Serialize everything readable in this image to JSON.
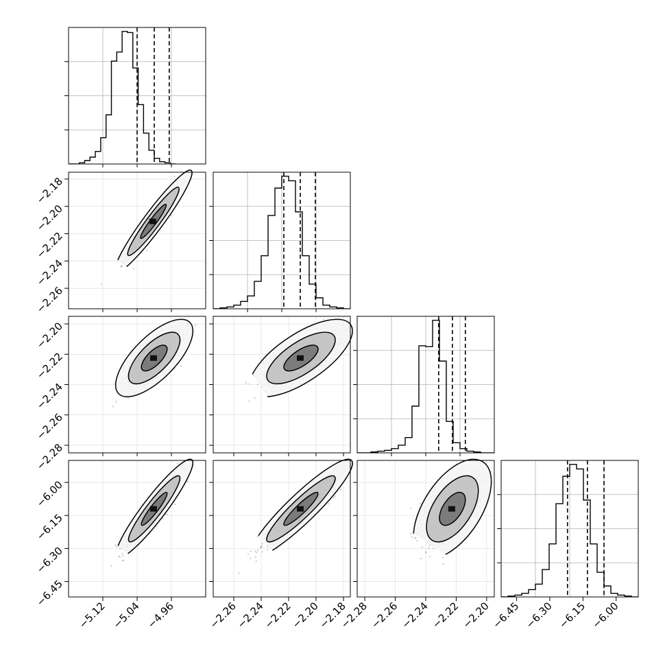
{
  "chart_data": {
    "type": "corner",
    "panels": [
      {
        "type": "histogram",
        "row": 0,
        "col": 0,
        "param_index": 0,
        "xlim": [
          -5.2,
          -4.88
        ],
        "bin_start": -5.2,
        "bin_width": 0.0125,
        "counts": [
          0,
          0,
          1,
          3,
          6,
          11,
          23,
          43,
          90,
          98,
          116,
          115,
          84,
          52,
          27,
          12,
          5,
          2,
          1,
          0
        ],
        "quantiles": [
          -5.04,
          -5.0,
          -4.965
        ],
        "show_xticks": false
      },
      {
        "type": "scatter",
        "row": 1,
        "col": 0,
        "x_param": 0,
        "y_param": 1,
        "xlim": [
          -5.2,
          -4.88
        ],
        "ylim": [
          -2.275,
          -2.175
        ],
        "center": [
          -5.002,
          -2.211
        ],
        "sigma": [
          0.03,
          0.0125
        ],
        "rho": 0.95,
        "contour_levels": [
          0.393,
          0.865,
          0.989
        ],
        "yticks": [
          "−2.18",
          "−2.20",
          "−2.22",
          "−2.24",
          "−2.26"
        ],
        "ytick_values": [
          -2.18,
          -2.2,
          -2.22,
          -2.24,
          -2.26
        ]
      },
      {
        "type": "histogram",
        "row": 1,
        "col": 1,
        "param_index": 1,
        "xlim": [
          -2.275,
          -2.175
        ],
        "bin_start": -2.275,
        "bin_width": 0.005,
        "counts": [
          0,
          1,
          2,
          4,
          8,
          14,
          30,
          58,
          102,
          132,
          145,
          140,
          106,
          58,
          27,
          12,
          4,
          2,
          1,
          0
        ],
        "quantiles": [
          -2.2235,
          -2.2115,
          -2.2005
        ],
        "show_xticks": false
      },
      {
        "type": "scatter",
        "row": 2,
        "col": 0,
        "x_param": 0,
        "y_param": 2,
        "xlim": [
          -5.2,
          -4.88
        ],
        "ylim": [
          -2.285,
          -2.195
        ],
        "center": [
          -5.0,
          -2.2225
        ],
        "sigma": [
          0.03,
          0.0085
        ],
        "rho": 0.7,
        "contour_levels": [
          0.393,
          0.865,
          0.989
        ],
        "yticks": [
          "−2.20",
          "−2.22",
          "−2.24",
          "−2.26",
          "−2.28"
        ],
        "ytick_values": [
          -2.2,
          -2.22,
          -2.24,
          -2.26,
          -2.28
        ]
      },
      {
        "type": "scatter",
        "row": 2,
        "col": 1,
        "x_param": 1,
        "y_param": 2,
        "xlim": [
          -2.275,
          -2.175
        ],
        "ylim": [
          -2.285,
          -2.195
        ],
        "center": [
          -2.211,
          -2.2225
        ],
        "sigma": [
          0.0125,
          0.0085
        ],
        "rho": 0.7,
        "contour_levels": [
          0.393,
          0.865,
          0.989
        ],
        "yticks": [],
        "ytick_values": []
      },
      {
        "type": "histogram",
        "row": 2,
        "col": 2,
        "param_index": 2,
        "xlim": [
          -2.285,
          -2.195
        ],
        "bin_start": -2.285,
        "bin_width": 0.0045,
        "counts": [
          0,
          0,
          1,
          2,
          3,
          5,
          9,
          18,
          55,
          126,
          125,
          156,
          108,
          37,
          12,
          5,
          2,
          1,
          0,
          0
        ],
        "quantiles": [
          -2.2315,
          -2.2225,
          -2.214
        ],
        "show_xticks": false
      },
      {
        "type": "scatter",
        "row": 3,
        "col": 0,
        "x_param": 0,
        "y_param": 3,
        "xlim": [
          -5.2,
          -4.88
        ],
        "ylim": [
          -6.52,
          -5.9
        ],
        "center": [
          -5.0,
          -6.12
        ],
        "sigma": [
          0.03,
          0.075
        ],
        "rho": 0.93,
        "contour_levels": [
          0.393,
          0.865,
          0.989
        ],
        "yticks": [
          "−6.00",
          "−6.15",
          "−6.30",
          "−6.45"
        ],
        "ytick_values": [
          -6.0,
          -6.15,
          -6.3,
          -6.45
        ],
        "xticks": [
          "−5.12",
          "−5.04",
          "−4.96"
        ],
        "xtick_values": [
          -5.12,
          -5.04,
          -4.96
        ]
      },
      {
        "type": "scatter",
        "row": 3,
        "col": 1,
        "x_param": 1,
        "y_param": 3,
        "xlim": [
          -2.275,
          -2.175
        ],
        "ylim": [
          -6.52,
          -5.9
        ],
        "center": [
          -2.211,
          -6.12
        ],
        "sigma": [
          0.0125,
          0.075
        ],
        "rho": 0.92,
        "contour_levels": [
          0.393,
          0.865,
          0.989
        ],
        "yticks": [],
        "ytick_values": [],
        "xticks": [
          "−2.26",
          "−2.24",
          "−2.22",
          "−2.20",
          "−2.18"
        ],
        "xtick_values": [
          -2.26,
          -2.24,
          -2.22,
          -2.2,
          -2.18
        ]
      },
      {
        "type": "scatter",
        "row": 3,
        "col": 2,
        "x_param": 2,
        "y_param": 3,
        "xlim": [
          -2.285,
          -2.195
        ],
        "ylim": [
          -6.52,
          -5.9
        ],
        "center": [
          -2.2225,
          -6.12
        ],
        "sigma": [
          0.0085,
          0.075
        ],
        "rho": 0.55,
        "contour_levels": [
          0.393,
          0.865,
          0.989
        ],
        "yticks": [],
        "ytick_values": [],
        "xticks": [
          "−2.28",
          "−2.26",
          "−2.24",
          "−2.22",
          "−2.20"
        ],
        "xtick_values": [
          -2.28,
          -2.26,
          -2.24,
          -2.22,
          -2.2
        ]
      },
      {
        "type": "histogram",
        "row": 3,
        "col": 3,
        "param_index": 3,
        "xlim": [
          -6.52,
          -5.9
        ],
        "bin_start": -6.52,
        "bin_width": 0.031,
        "counts": [
          0,
          1,
          2,
          4,
          8,
          14,
          30,
          58,
          102,
          132,
          145,
          140,
          106,
          58,
          27,
          12,
          4,
          2,
          1,
          0
        ],
        "quantiles": [
          -6.22,
          -6.13,
          -6.055
        ],
        "show_xticks": true,
        "xticks": [
          "−6.45",
          "−6.30",
          "−6.15",
          "−6.00"
        ],
        "xtick_values": [
          -6.45,
          -6.3,
          -6.15,
          -6.0
        ]
      }
    ],
    "grid": true,
    "point_color": "#888888",
    "contour_color": "#000000",
    "quantile_line_style": "dashed",
    "xlabel": "",
    "ylabel": "",
    "title": ""
  }
}
